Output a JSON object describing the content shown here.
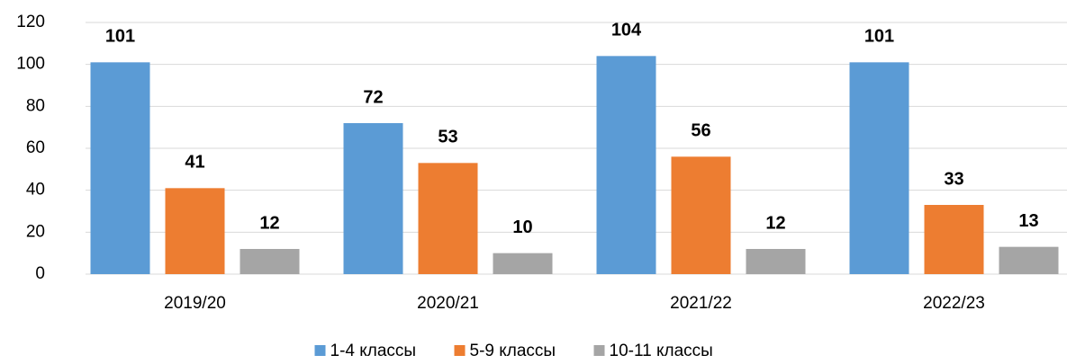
{
  "chart_data": {
    "type": "bar",
    "categories": [
      "2019/20",
      "2020/21",
      "2021/22",
      "2022/23"
    ],
    "series": [
      {
        "name": "1-4 классы",
        "color": "#5b9bd5",
        "values": [
          101,
          72,
          104,
          101
        ]
      },
      {
        "name": "5-9 классы",
        "color": "#ed7d31",
        "values": [
          41,
          53,
          56,
          33
        ]
      },
      {
        "name": "10-11 классы",
        "color": "#a5a5a5",
        "values": [
          12,
          10,
          12,
          13
        ]
      }
    ],
    "ylim": [
      0,
      120
    ],
    "yticks": [
      0,
      20,
      40,
      60,
      80,
      100,
      120
    ],
    "grid": true,
    "legend": "bottom"
  }
}
